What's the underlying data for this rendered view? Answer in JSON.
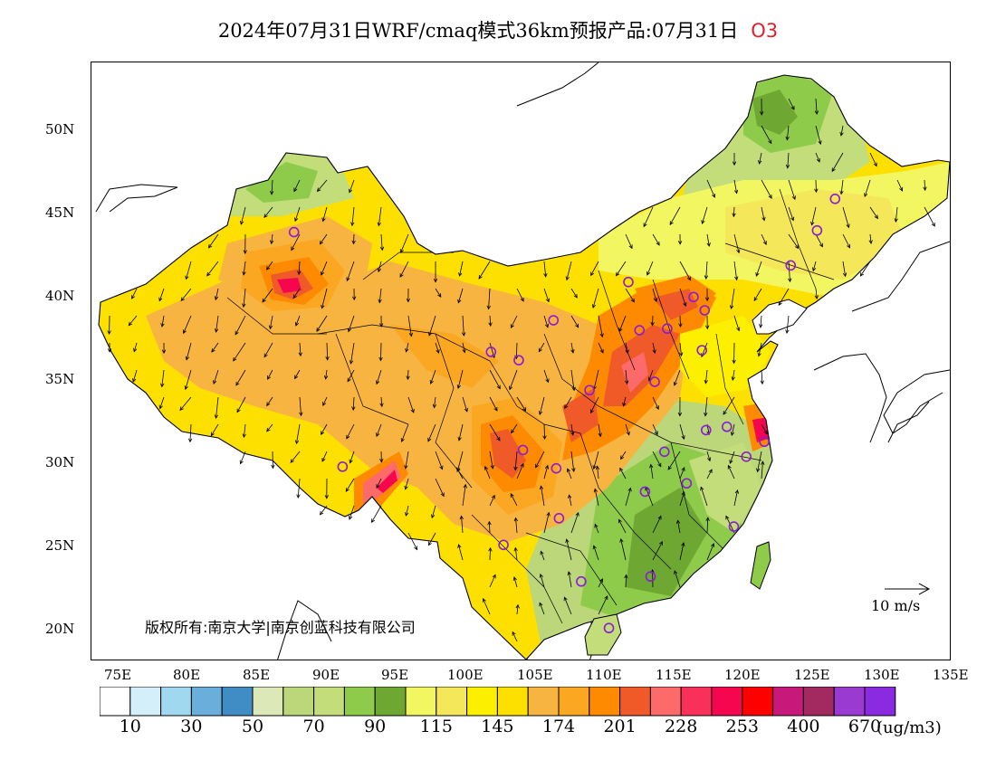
{
  "title": "2024年07月31日WRF/cmaq模式36km预报产品:07月31日",
  "pollutant": "O3",
  "copyright": "版权所有:南京大学|南京创蓝科技有限公司",
  "wind_reference": "10 m/s",
  "axis": {
    "x_ticks": [
      "75E",
      "80E",
      "85E",
      "90E",
      "95E",
      "100E",
      "105E",
      "110E",
      "115E",
      "120E",
      "125E",
      "130E",
      "135E"
    ],
    "y_ticks": [
      "50N",
      "45N",
      "40N",
      "35N",
      "30N",
      "25N",
      "20N"
    ]
  },
  "colorbar": {
    "unit": "(ug/m3)",
    "labels": [
      "10",
      "30",
      "50",
      "70",
      "90",
      "115",
      "145",
      "174",
      "201",
      "228",
      "253",
      "400",
      "670"
    ],
    "colors": [
      "#ffffff",
      "#d4eefa",
      "#a0d8f0",
      "#6aaedb",
      "#3f8dc4",
      "#dde8b8",
      "#bcd67a",
      "#c2dd7a",
      "#8fcb4a",
      "#6ea832",
      "#f2f761",
      "#f4e75a",
      "#fcf000",
      "#fde000",
      "#f8b440",
      "#fba722",
      "#fd8a00",
      "#f05a28",
      "#fd6a6a",
      "#f8305a",
      "#f5064f",
      "#ff0000",
      "#c8187a",
      "#a22a60",
      "#9b3ad0",
      "#8a2be2"
    ]
  },
  "map": {
    "lon_range": [
      73,
      135
    ],
    "lat_range": [
      18,
      54
    ],
    "stations": [
      {
        "lon": 87.6,
        "lat": 43.8
      },
      {
        "lon": 101.8,
        "lat": 36.6
      },
      {
        "lon": 103.8,
        "lat": 36.1
      },
      {
        "lon": 106.3,
        "lat": 38.5
      },
      {
        "lon": 111.7,
        "lat": 40.8
      },
      {
        "lon": 112.5,
        "lat": 37.9
      },
      {
        "lon": 114.5,
        "lat": 38.0
      },
      {
        "lon": 116.4,
        "lat": 39.9
      },
      {
        "lon": 117.2,
        "lat": 39.1
      },
      {
        "lon": 117.0,
        "lat": 36.7
      },
      {
        "lon": 113.6,
        "lat": 34.8
      },
      {
        "lon": 108.9,
        "lat": 34.3
      },
      {
        "lon": 104.1,
        "lat": 30.7
      },
      {
        "lon": 106.5,
        "lat": 29.6
      },
      {
        "lon": 106.7,
        "lat": 26.6
      },
      {
        "lon": 102.7,
        "lat": 25.0
      },
      {
        "lon": 91.1,
        "lat": 29.7
      },
      {
        "lon": 108.3,
        "lat": 22.8
      },
      {
        "lon": 113.3,
        "lat": 23.1
      },
      {
        "lon": 110.3,
        "lat": 20.0
      },
      {
        "lon": 112.9,
        "lat": 28.2
      },
      {
        "lon": 114.3,
        "lat": 30.6
      },
      {
        "lon": 115.9,
        "lat": 28.7
      },
      {
        "lon": 117.3,
        "lat": 31.9
      },
      {
        "lon": 118.8,
        "lat": 32.1
      },
      {
        "lon": 120.2,
        "lat": 30.3
      },
      {
        "lon": 121.5,
        "lat": 31.2
      },
      {
        "lon": 119.3,
        "lat": 26.1
      },
      {
        "lon": 123.4,
        "lat": 41.8
      },
      {
        "lon": 125.3,
        "lat": 43.9
      },
      {
        "lon": 126.6,
        "lat": 45.8
      }
    ]
  }
}
